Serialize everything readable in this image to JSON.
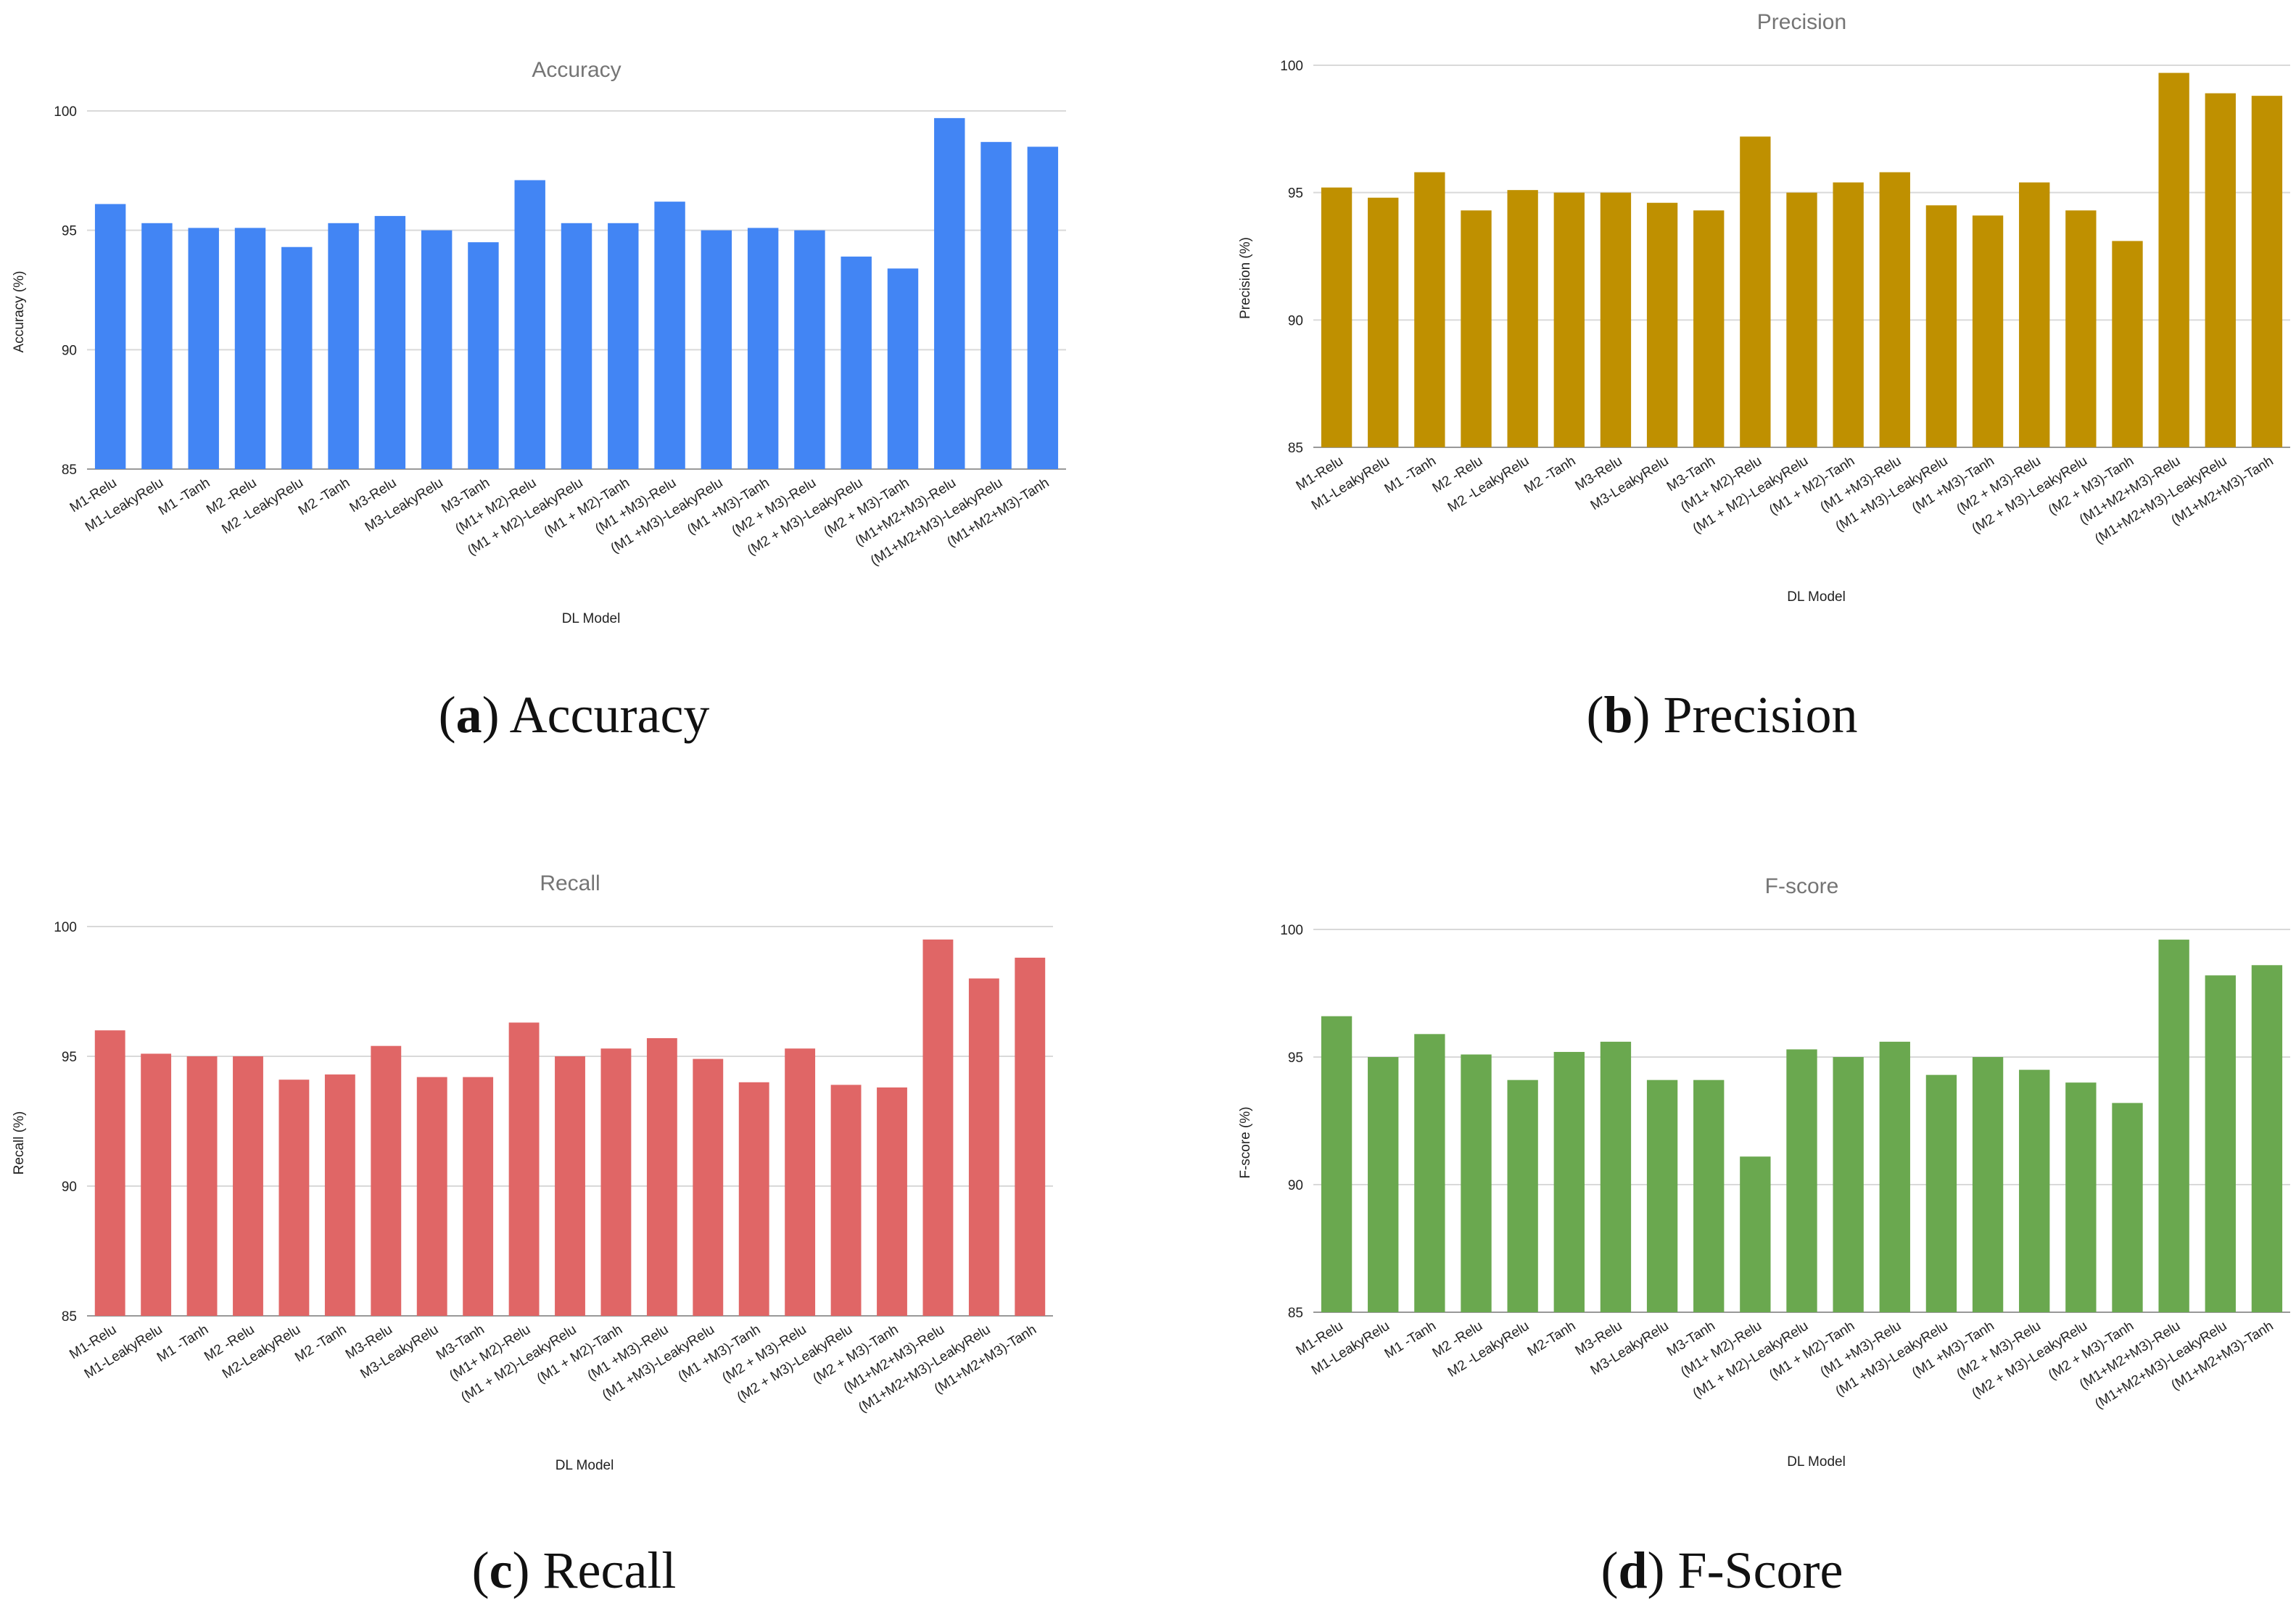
{
  "chart_data": [
    {
      "type": "bar",
      "title": "Accuracy",
      "xlabel": "DL Model",
      "ylabel": "Accuracy (%)",
      "ylim": [
        85,
        100
      ],
      "yticks": [
        85,
        90,
        95,
        100
      ],
      "grid": true,
      "color": "#4285f4",
      "caption_letter": "a",
      "caption_text": "Accuracy",
      "categories": [
        "M1-Relu",
        "M1-LeakyRelu",
        "M1 -Tanh",
        "M2 -Relu",
        "M2 -LeakyRelu",
        "M2 -Tanh",
        "M3-Relu",
        "M3-LeakyRelu",
        "M3-Tanh",
        "(M1+ M2)-Relu",
        "(M1 + M2)-LeakyRelu",
        "(M1 + M2)-Tanh",
        "(M1 +M3)-Relu",
        "(M1 +M3)-LeakyRelu",
        "(M1 +M3)-Tanh",
        "(M2 + M3)-Relu",
        "(M2 + M3)-LeakyRelu",
        "(M2 + M3)-Tanh",
        "(M1+M2+M3)-Relu",
        "(M1+M2+M3)-LeakyRelu",
        "(M1+M2+M3)-Tanh"
      ],
      "values": [
        96.1,
        95.3,
        95.1,
        95.1,
        94.3,
        95.3,
        95.6,
        95.0,
        94.5,
        97.1,
        95.3,
        95.3,
        96.2,
        95.0,
        95.1,
        95.0,
        93.9,
        93.4,
        99.7,
        98.7,
        98.5
      ]
    },
    {
      "type": "bar",
      "title": "Precision",
      "xlabel": "DL Model",
      "ylabel": "Precision (%)",
      "ylim": [
        85,
        100
      ],
      "yticks": [
        85,
        90,
        95,
        100
      ],
      "grid": true,
      "color": "#bf9000",
      "caption_letter": "b",
      "caption_text": "Precision",
      "categories": [
        "M1-Relu",
        "M1-LeakyRelu",
        "M1 -Tanh",
        "M2 -Relu",
        "M2 -LeakyRelu",
        "M2 -Tanh",
        "M3-Relu",
        "M3-LeakyRelu",
        "M3-Tanh",
        "(M1+ M2)-Relu",
        "(M1 + M2)-LeakyRelu",
        "(M1 + M2)-Tanh",
        "(M1 +M3)-Relu",
        "(M1 +M3)-LeakyRelu",
        "(M1 +M3)-Tanh",
        "(M2 + M3)-Relu",
        "(M2 + M3)-LeakyRelu",
        "(M2 + M3)-Tanh",
        "(M1+M2+M3)-Relu",
        "(M1+M2+M3)-LeakyRelu",
        "(M1+M2+M3)-Tanh"
      ],
      "values": [
        95.2,
        94.8,
        95.8,
        94.3,
        95.1,
        95.0,
        95.0,
        94.6,
        94.3,
        97.2,
        95.0,
        95.4,
        95.8,
        94.5,
        94.1,
        95.4,
        94.3,
        93.1,
        99.7,
        98.9,
        98.8
      ]
    },
    {
      "type": "bar",
      "title": "Recall",
      "xlabel": "DL Model",
      "ylabel": "Recall (%)",
      "ylim": [
        85,
        100
      ],
      "yticks": [
        85,
        90,
        95,
        100
      ],
      "grid": true,
      "color": "#e06666",
      "caption_letter": "c",
      "caption_text": "Recall",
      "categories": [
        "M1-Relu",
        "M1-LeakyRelu",
        "M1 -Tanh",
        "M2 -Relu",
        "M2-LeakyRelu",
        "M2 -Tanh",
        "M3-Relu",
        "M3-LeakyRelu",
        "M3-Tanh",
        "(M1+ M2)-Relu",
        "(M1 + M2)-LeakyRelu",
        "(M1 + M2)-Tanh",
        "(M1 +M3)-Relu",
        "(M1 +M3)-LeakyRelu",
        "(M1 +M3)-Tanh",
        "(M2 + M3)-Relu",
        "(M2 + M3)-LeakyRelu",
        "(M2 + M3)-Tanh",
        "(M1+M2+M3)-Relu",
        "(M1+M2+M3)-LeakyRelu",
        "(M1+M2+M3)-Tanh"
      ],
      "values": [
        96.0,
        95.1,
        95.0,
        95.0,
        94.1,
        94.3,
        95.4,
        94.2,
        94.2,
        96.3,
        95.0,
        95.3,
        95.7,
        94.9,
        94.0,
        95.3,
        93.9,
        93.8,
        99.5,
        98.0,
        98.8
      ]
    },
    {
      "type": "bar",
      "title": "F-score",
      "xlabel": "DL Model",
      "ylabel": "F-score (%)",
      "ylim": [
        85,
        100
      ],
      "yticks": [
        85,
        90,
        95,
        100
      ],
      "grid": true,
      "color": "#6aa84f",
      "caption_letter": "d",
      "caption_text": "F-Score",
      "categories": [
        "M1-Relu",
        "M1-LeakyRelu",
        "M1 -Tanh",
        "M2 -Relu",
        "M2 -LeakyRelu",
        "M2-Tanh",
        "M3-Relu",
        "M3-LeakyRelu",
        "M3-Tanh",
        "(M1+ M2)-Relu",
        "(M1 + M2)-LeakyRelu",
        "(M1 + M2)-Tanh",
        "(M1 +M3)-Relu",
        "(M1 +M3)-LeakyRelu",
        "(M1 +M3)-Tanh",
        "(M2 + M3)-Relu",
        "(M2 + M3)-LeakyRelu",
        "(M2 + M3)-Tanh",
        "(M1+M2+M3)-Relu",
        "(M1+M2+M3)-LeakyRelu",
        "(M1+M2+M3)-Tanh"
      ],
      "values": [
        96.6,
        95.0,
        95.9,
        95.1,
        94.1,
        95.2,
        95.6,
        94.1,
        94.1,
        91.1,
        95.3,
        95.0,
        95.6,
        94.3,
        95.0,
        94.5,
        94.0,
        93.2,
        99.6,
        98.2,
        98.6
      ]
    }
  ]
}
